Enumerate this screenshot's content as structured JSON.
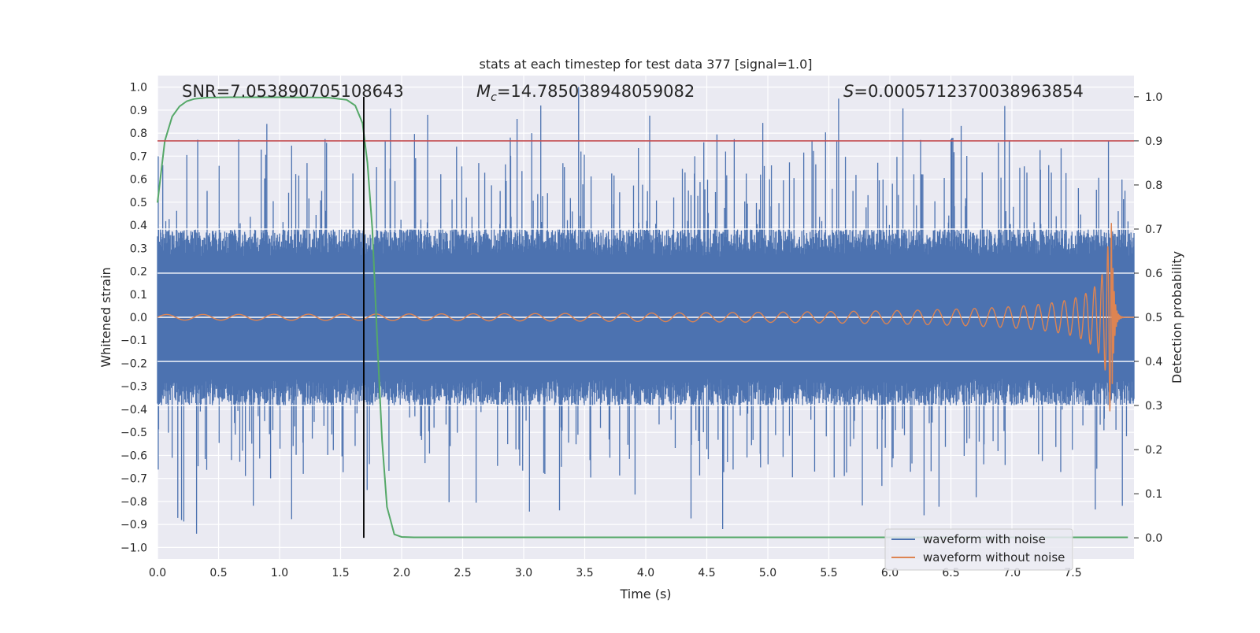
{
  "chart_data": {
    "type": "line",
    "title": "stats at each timestep for test data 377 [signal=1.0]",
    "xlabel": "Time (s)",
    "ylabel": "Whitened strain",
    "y2label": "Detection probability",
    "xlim": [
      0.0,
      8.0
    ],
    "ylim": [
      -1.05,
      1.05
    ],
    "y2lim": [
      -0.048,
      1.048
    ],
    "xticks": [
      0.0,
      0.5,
      1.0,
      1.5,
      2.0,
      2.5,
      3.0,
      3.5,
      4.0,
      4.5,
      5.0,
      5.5,
      6.0,
      6.5,
      7.0,
      7.5
    ],
    "xtick_labels": [
      "0.0",
      "0.5",
      "1.0",
      "1.5",
      "2.0",
      "2.5",
      "3.0",
      "3.5",
      "4.0",
      "4.5",
      "5.0",
      "5.5",
      "6.0",
      "6.5",
      "7.0",
      "7.5"
    ],
    "yticks": [
      1.0,
      0.9,
      0.8,
      0.7,
      0.6,
      0.5,
      0.4,
      0.3,
      0.2,
      0.1,
      0.0,
      -0.1,
      -0.2,
      -0.3,
      -0.4,
      -0.5,
      -0.6,
      -0.7,
      -0.8,
      -0.9,
      -1.0
    ],
    "ytick_labels": [
      "1.0",
      "0.9",
      "0.8",
      "0.7",
      "0.6",
      "0.5",
      "0.4",
      "0.3",
      "0.2",
      "0.1",
      "0.0",
      "−0.1",
      "−0.2",
      "−0.3",
      "−0.4",
      "−0.5",
      "−0.6",
      "−0.7",
      "−0.8",
      "−0.9",
      "−1.0"
    ],
    "y2ticks": [
      1.0,
      0.9,
      0.8,
      0.7,
      0.6,
      0.5,
      0.4,
      0.3,
      0.2,
      0.1,
      0.0
    ],
    "y2tick_labels": [
      "1.0",
      "0.9",
      "0.8",
      "0.7",
      "0.6",
      "0.5",
      "0.4",
      "0.3",
      "0.2",
      "0.1",
      "0.0"
    ],
    "grid": true,
    "legend_position": "bottom-right",
    "annotations": {
      "snr": "SNR=7.053890705108643",
      "mc_symbol": "M",
      "mc_subscript": "c",
      "mc_value": "=14.785038948059082",
      "s_symbol": "S",
      "s_value": "=0.0005712370038963854"
    },
    "threshold": {
      "value": 0.9,
      "axis": "right",
      "color": "#c44e52"
    },
    "marker_time": {
      "x": 1.69,
      "color": "#000000"
    },
    "series": [
      {
        "name": "waveform with noise",
        "axis": "left",
        "color": "#4c72b0",
        "kind": "noisy-strain",
        "band_amplitude": 0.35,
        "spike_max": 1.0,
        "spike_min": -0.94
      },
      {
        "name": "waveform without noise",
        "axis": "left",
        "color": "#dd8452",
        "kind": "chirp",
        "t_merger": 7.82,
        "peak_amplitude": 0.41,
        "base_amplitude": 0.012,
        "end_time": 8.0
      },
      {
        "name": "detection probability",
        "axis": "right",
        "color": "#55a868",
        "x": [
          0.0,
          0.06,
          0.12,
          0.18,
          0.24,
          0.3,
          0.4,
          0.6,
          1.0,
          1.4,
          1.55,
          1.62,
          1.68,
          1.72,
          1.76,
          1.8,
          1.84,
          1.88,
          1.94,
          2.0,
          2.1,
          3.0,
          5.0,
          7.0,
          7.95
        ],
        "values": [
          0.76,
          0.9,
          0.955,
          0.978,
          0.99,
          0.995,
          0.998,
          0.999,
          0.999,
          0.998,
          0.993,
          0.98,
          0.94,
          0.85,
          0.7,
          0.45,
          0.22,
          0.07,
          0.008,
          0.002,
          0.001,
          0.001,
          0.001,
          0.001,
          0.001
        ]
      }
    ]
  },
  "legend": {
    "items": [
      {
        "label": "waveform with noise",
        "color": "#4c72b0"
      },
      {
        "label": "waveform without noise",
        "color": "#dd8452"
      }
    ]
  }
}
